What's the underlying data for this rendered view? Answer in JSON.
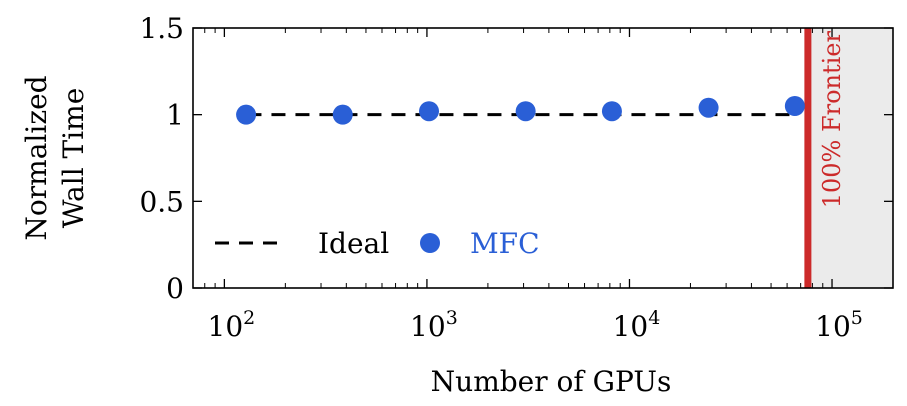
{
  "chart_data": {
    "type": "scatter",
    "xlabel": "Number of GPUs",
    "ylabel_lines": [
      "Normalized",
      "Wall Time"
    ],
    "x_scale": "log",
    "xlim": [
      70,
      200000
    ],
    "ylim": [
      0,
      1.5
    ],
    "x_ticks": [
      {
        "value": 100,
        "base": "10",
        "exp": "2"
      },
      {
        "value": 1000,
        "base": "10",
        "exp": "3"
      },
      {
        "value": 10000,
        "base": "10",
        "exp": "4"
      },
      {
        "value": 100000,
        "base": "10",
        "exp": "5"
      }
    ],
    "y_ticks": [
      {
        "value": 0,
        "label": "0"
      },
      {
        "value": 0.5,
        "label": "0.5"
      },
      {
        "value": 1,
        "label": "1"
      },
      {
        "value": 1.5,
        "label": "1.5"
      }
    ],
    "series": [
      {
        "name": "Ideal",
        "kind": "line",
        "style": "dashed",
        "color": "#000000",
        "x": [
          130,
          65000
        ],
        "y": [
          1,
          1
        ]
      },
      {
        "name": "MFC",
        "kind": "scatter",
        "color": "#2a5fd6",
        "x": [
          128,
          384,
          1024,
          3072,
          8192,
          24576,
          65536
        ],
        "y": [
          1.0,
          1.0,
          1.02,
          1.02,
          1.02,
          1.04,
          1.05
        ]
      }
    ],
    "vertical_marker": {
      "x": 76000,
      "label": "100% Frontier",
      "color": "#cc2a2a",
      "shaded_region_color": "#ebebeb"
    },
    "legend_position": "bottom-left",
    "grid": false
  }
}
